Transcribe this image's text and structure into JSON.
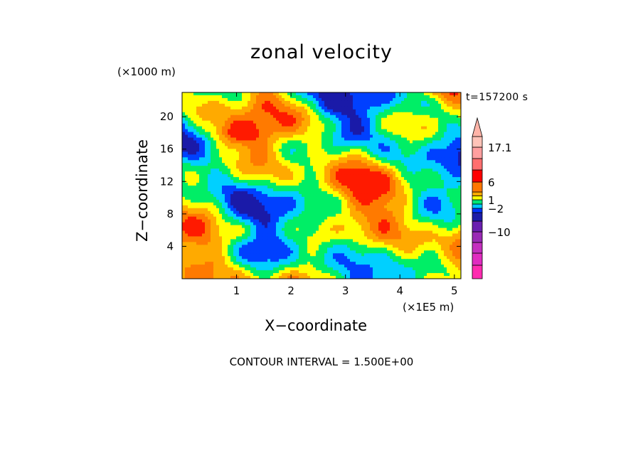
{
  "chart_data": {
    "type": "heatmap",
    "title": "zonal velocity",
    "xlabel": "X−coordinate",
    "ylabel": "Z−coordinate",
    "x_unit": "(×1E5 m)",
    "y_unit": "(×1000 m)",
    "time_label": "t=157200 s",
    "contour_interval_label": "CONTOUR INTERVAL = 1.500E+00",
    "xlim": [
      0,
      5.12
    ],
    "ylim": [
      0,
      23
    ],
    "x_ticks": [
      "1",
      "2",
      "3",
      "4",
      "5"
    ],
    "y_ticks": [
      "4",
      "8",
      "12",
      "16",
      "20"
    ],
    "colorbar": {
      "labels": [
        "17.1",
        "6",
        "1",
        "−2",
        "−10"
      ],
      "levels": [
        {
          "color": "#ff2bb0"
        },
        {
          "color": "#e02cc0"
        },
        {
          "color": "#c42fbf"
        },
        {
          "color": "#9a2ab5"
        },
        {
          "color": "#6a1fb0"
        },
        {
          "color": "#1c1ca8"
        },
        {
          "color": "#0033ff"
        },
        {
          "color": "#00c8ff"
        },
        {
          "color": "#00e676"
        },
        {
          "color": "#ffff00"
        },
        {
          "color": "#ffaa00"
        },
        {
          "color": "#ff7700"
        },
        {
          "color": "#ff0000"
        },
        {
          "color": "#ff6f6f"
        },
        {
          "color": "#ff9f9f"
        },
        {
          "color": "#ffc3b8"
        }
      ]
    },
    "field_colors": [
      "#1a1aa8",
      "#0040ff",
      "#00d0ff",
      "#00ee66",
      "#ffff00",
      "#ffaa00",
      "#ff7a00",
      "#ff1a00"
    ]
  }
}
